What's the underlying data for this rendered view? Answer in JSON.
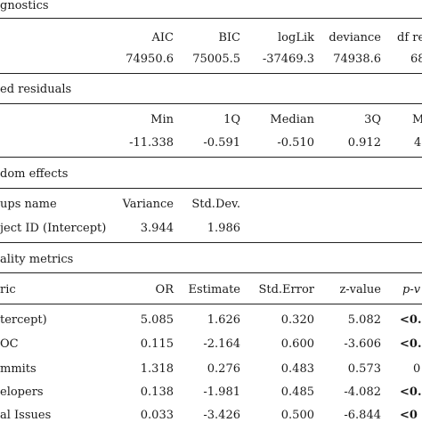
{
  "sections": {
    "diagnostics": {
      "title": "gnostics",
      "headers": [
        "AIC",
        "BIC",
        "logLik",
        "deviance",
        "df re"
      ],
      "values": [
        "74950.6",
        "75005.5",
        "-37469.3",
        "74938.6",
        "68"
      ]
    },
    "residuals": {
      "title": "ed residuals",
      "headers": [
        "Min",
        "1Q",
        "Median",
        "3Q",
        "M"
      ],
      "values": [
        "-11.338",
        "-0.591",
        "-0.510",
        "0.912",
        "4"
      ]
    },
    "random_effects": {
      "title": "dom effects",
      "headers": [
        "ups name",
        "Variance",
        "Std.Dev."
      ],
      "values": [
        "ject ID (Intercept)",
        "3.944",
        "1.986"
      ]
    },
    "quality_metrics": {
      "title": "ality metrics",
      "headers": [
        "ric",
        "OR",
        "Estimate",
        "Std.Error",
        "z-value",
        "p-v"
      ],
      "rows": [
        [
          "tercept)",
          "5.085",
          "1.626",
          "0.320",
          "5.082",
          "<0."
        ],
        [
          "OC",
          "0.115",
          "-2.164",
          "0.600",
          "-3.606",
          "<0."
        ],
        [
          "mmits",
          "1.318",
          "0.276",
          "0.483",
          "0.573",
          "0"
        ],
        [
          "elopers",
          "0.138",
          "-1.981",
          "0.485",
          "-4.082",
          "<0."
        ],
        [
          "al Issues",
          "0.033",
          "-3.426",
          "0.500",
          "-6.844",
          "<0"
        ]
      ]
    }
  }
}
